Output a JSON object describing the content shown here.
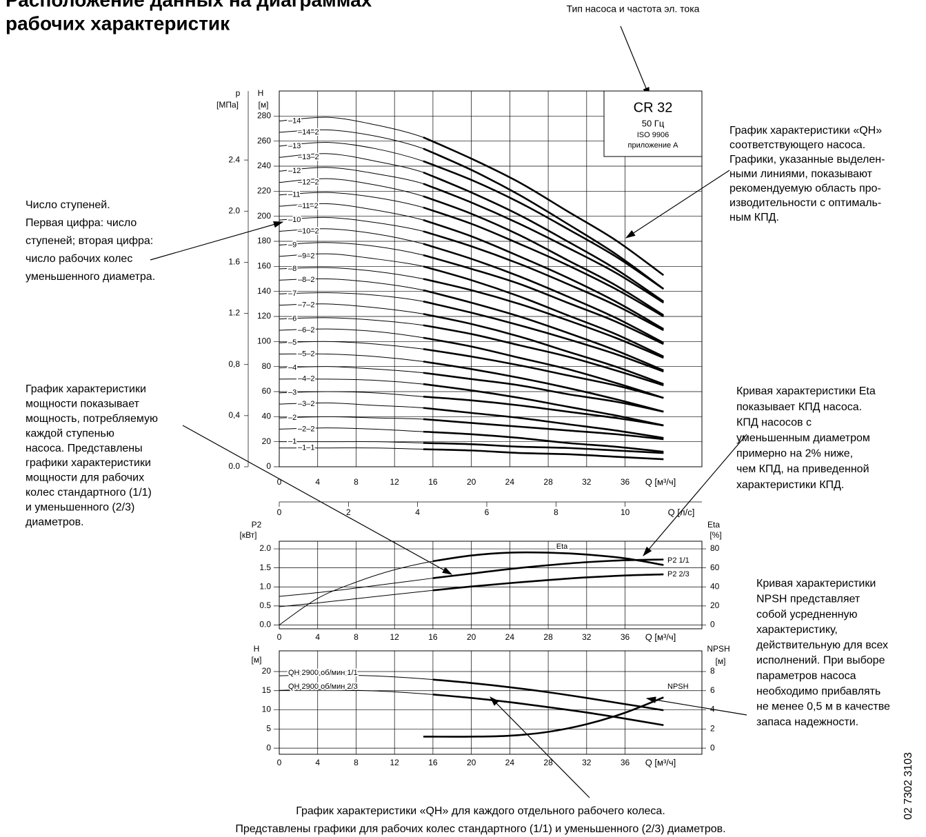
{
  "title": [
    "Расположение данных на диаграммах",
    "рабочих характеристик"
  ],
  "annotations": {
    "pump_type": "Тип насоса и частота эл. тока",
    "qh_curves": [
      "График характеристики «QH»",
      "соответствующего насоса.",
      "Графики, указанные выделен-",
      "ными линиями, показывают",
      "рекомендуемую область про-",
      "изводительности с оптималь-",
      "ным КПД."
    ],
    "stages": [
      "Число ступеней.",
      "Первая цифра: число",
      "ступеней; вторая цифра:",
      "число рабочих колес",
      "уменьшенного диаметра."
    ],
    "power": [
      "График характеристики",
      "мощности показывает",
      "мощность, потребляемую",
      "каждой ступенью",
      "насоса. Представлены",
      "графики характеристики",
      "мощности для рабочих",
      "колес стандартного (1/1)",
      "и уменьшенного (2/3)",
      "диаметров."
    ],
    "eta": [
      "Кривая характеристики Eta",
      "показывает КПД насоса.",
      "КПД насосов с",
      "уменьшенным диаметром",
      "примерно на 2% ниже,",
      "чем КПД, на приведенной",
      "характеристики КПД."
    ],
    "npsh": [
      "Кривая характеристики",
      "NPSH представляет",
      "собой усредненную",
      "характеристику,",
      "действительную для всех",
      "исполнений. При выборе",
      "параметров насоса",
      "необходимо прибавлять",
      "не менее 0,5 м в качестве",
      "запаса надежности."
    ],
    "bottom": [
      "График характеристики «QH» для каждого отдельного рабочего колеса.",
      "Представлены графики для рабочих колес стандартного (1/1) и уменьшенного (2/3) диаметров."
    ],
    "doc_number": "02 7302 3103"
  },
  "chart_data": [
    {
      "type": "line",
      "box": [
        "CR 32",
        "50 Гц",
        "ISO 9906",
        "приложение A"
      ],
      "x_label": "Q [м³/ч]",
      "y_label": "H",
      "y_unit": "[м]",
      "y2_label": "p",
      "y2_unit": "[МПа]",
      "xlim": [
        0,
        44
      ],
      "xticks": [
        0,
        4,
        8,
        12,
        16,
        20,
        24,
        28,
        32,
        36
      ],
      "ylim": [
        0,
        300
      ],
      "yticks": [
        0,
        20,
        40,
        60,
        80,
        100,
        120,
        140,
        160,
        180,
        200,
        220,
        240,
        260,
        280
      ],
      "y2lim": [
        0,
        2.94
      ],
      "y2ticks": [
        {
          "value": 0,
          "label": "0.0"
        },
        {
          "value": 0.4,
          "label": "0,4"
        },
        {
          "value": 0.8,
          "label": "0,8"
        },
        {
          "value": 1.2,
          "label": "1.2"
        },
        {
          "value": 1.6,
          "label": "1.6"
        },
        {
          "value": 2.0,
          "label": "2.0"
        },
        {
          "value": 2.4,
          "label": "2.4"
        }
      ],
      "grid": true,
      "highlight_from": 15,
      "x": [
        0,
        5,
        10,
        15,
        20,
        25,
        30,
        35,
        40
      ],
      "series": [
        {
          "name": "–14",
          "color": "#000000",
          "values": [
            276,
            279,
            273,
            263,
            246,
            227,
            204,
            181,
            153
          ]
        },
        {
          "name": "–14–2",
          "color": "#000000",
          "values": [
            267,
            269,
            264,
            254,
            237,
            217,
            194,
            170,
            142
          ]
        },
        {
          "name": "–13",
          "color": "#000000",
          "values": [
            256,
            259,
            254,
            244,
            229,
            211,
            190,
            168,
            142
          ]
        },
        {
          "name": "–13–2",
          "color": "#000000",
          "values": [
            247,
            250,
            244,
            235,
            219,
            201,
            180,
            158,
            132
          ]
        },
        {
          "name": "–12",
          "color": "#000000",
          "values": [
            236,
            239,
            234,
            226,
            211,
            194,
            175,
            155,
            131
          ]
        },
        {
          "name": "–12–2",
          "color": "#000000",
          "values": [
            227,
            230,
            225,
            216,
            202,
            185,
            165,
            145,
            121
          ]
        },
        {
          "name": "–11",
          "color": "#000000",
          "values": [
            217,
            219,
            215,
            207,
            194,
            178,
            161,
            142,
            120
          ]
        },
        {
          "name": "–11–2",
          "color": "#000000",
          "values": [
            208,
            210,
            205,
            197,
            184,
            168,
            151,
            132,
            110
          ]
        },
        {
          "name": "–10",
          "color": "#000000",
          "values": [
            197,
            199,
            195,
            188,
            176,
            162,
            146,
            129,
            109
          ]
        },
        {
          "name": "–10–2",
          "color": "#000000",
          "values": [
            188,
            190,
            186,
            178,
            166,
            152,
            136,
            119,
            99
          ]
        },
        {
          "name": "–9",
          "color": "#000000",
          "values": [
            177,
            179,
            176,
            169,
            158,
            146,
            131,
            116,
            98
          ]
        },
        {
          "name": "–9–2",
          "color": "#000000",
          "values": [
            168,
            170,
            166,
            160,
            149,
            136,
            121,
            106,
            88
          ]
        },
        {
          "name": "–8",
          "color": "#000000",
          "values": [
            158,
            159,
            156,
            150,
            141,
            130,
            117,
            103,
            87
          ]
        },
        {
          "name": "–8–2",
          "color": "#000000",
          "values": [
            149,
            150,
            147,
            141,
            131,
            120,
            107,
            93,
            77
          ]
        },
        {
          "name": "–7",
          "color": "#000000",
          "values": [
            138,
            139,
            137,
            132,
            123,
            113,
            102,
            90,
            76
          ]
        },
        {
          "name": "–7–2",
          "color": "#000000",
          "values": [
            129,
            130,
            127,
            122,
            114,
            104,
            92,
            80,
            66
          ]
        },
        {
          "name": "–6",
          "color": "#000000",
          "values": [
            118,
            119,
            117,
            113,
            106,
            97,
            88,
            77,
            65
          ]
        },
        {
          "name": "–6–2",
          "color": "#000000",
          "values": [
            109,
            110,
            108,
            103,
            96,
            87,
            78,
            67,
            55
          ]
        },
        {
          "name": "–5",
          "color": "#000000",
          "values": [
            99,
            100,
            98,
            94,
            88,
            81,
            73,
            65,
            55
          ]
        },
        {
          "name": "–5–2",
          "color": "#000000",
          "values": [
            90,
            90,
            88,
            84,
            78,
            71,
            63,
            54,
            44
          ]
        },
        {
          "name": "–4",
          "color": "#000000",
          "values": [
            79,
            80,
            78,
            75,
            70,
            65,
            58,
            52,
            44
          ]
        },
        {
          "name": "–4–2",
          "color": "#000000",
          "values": [
            70,
            70,
            69,
            66,
            61,
            55,
            48,
            41,
            33
          ]
        },
        {
          "name": "–3",
          "color": "#000000",
          "values": [
            59,
            60,
            59,
            56,
            53,
            49,
            44,
            39,
            33
          ]
        },
        {
          "name": "–3–2",
          "color": "#000000",
          "values": [
            50,
            51,
            49,
            47,
            43,
            39,
            34,
            29,
            23
          ]
        },
        {
          "name": "–2",
          "color": "#000000",
          "values": [
            39,
            40,
            39,
            38,
            35,
            32,
            29,
            26,
            22
          ]
        },
        {
          "name": "–2–2",
          "color": "#000000",
          "values": [
            30,
            31,
            30,
            28,
            26,
            23,
            19,
            16,
            12
          ]
        },
        {
          "name": "–1",
          "color": "#000000",
          "values": [
            20,
            20,
            20,
            19,
            18,
            16,
            15,
            13,
            11
          ]
        },
        {
          "name": "–1–1",
          "color": "#000000",
          "values": [
            15,
            15,
            15,
            14,
            13,
            11,
            10,
            8,
            6
          ]
        }
      ]
    },
    {
      "type": "line",
      "x_label": "Q [м³/ч]",
      "x2_label": "Q [л/с]",
      "y_label": "P2",
      "y_unit": "[кВт]",
      "y2_label": "Eta",
      "y2_unit": "[%]",
      "xlim": [
        0,
        44
      ],
      "xticks": [
        0,
        4,
        8,
        12,
        16,
        20,
        24,
        28,
        32,
        36
      ],
      "x2lim": [
        0,
        12.22
      ],
      "x2ticks": [
        0,
        2,
        4,
        6,
        8,
        10
      ],
      "ylim": [
        -0.1,
        2.2
      ],
      "yticks": [
        {
          "value": 0,
          "label": "0.0"
        },
        0.5,
        {
          "value": 1,
          "label": "1.0"
        },
        1.5,
        {
          "value": 2,
          "label": "2.0"
        }
      ],
      "y2lim": [
        -4,
        88
      ],
      "y2ticks": [
        0,
        20,
        40,
        60,
        80
      ],
      "grid": true,
      "highlight_from": 15,
      "x": [
        0,
        4,
        8,
        12,
        16,
        20,
        24,
        28,
        32,
        36,
        40
      ],
      "series": [
        {
          "name": "Eta",
          "color": "#000000",
          "axis": "y2",
          "values": [
            0,
            28,
            45,
            58,
            67,
            73,
            76,
            76,
            74,
            70,
            63
          ]
        },
        {
          "name": "P2 1/1",
          "color": "#000000",
          "values": [
            0.75,
            0.85,
            0.97,
            1.1,
            1.23,
            1.35,
            1.47,
            1.57,
            1.65,
            1.7,
            1.72
          ]
        },
        {
          "name": "P2 2/3",
          "color": "#000000",
          "values": [
            0.48,
            0.58,
            0.69,
            0.8,
            0.91,
            1.01,
            1.1,
            1.18,
            1.25,
            1.3,
            1.33
          ]
        }
      ]
    },
    {
      "type": "line",
      "x_label": "Q [м³/ч]",
      "y_label": "H",
      "y_unit": "[м]",
      "y2_label": "NPSH",
      "y2_unit": "[м]",
      "xlim": [
        0,
        44
      ],
      "xticks": [
        0,
        4,
        8,
        12,
        16,
        20,
        24,
        28,
        32,
        36
      ],
      "ylim": [
        -1.6,
        25.4
      ],
      "yticks": [
        0,
        5,
        10,
        15,
        20
      ],
      "y2lim": [
        -0.64,
        10.16
      ],
      "y2ticks": [
        0,
        2,
        4,
        6,
        8
      ],
      "grid": true,
      "highlight_from": 15,
      "x": [
        0,
        4,
        8,
        12,
        16,
        20,
        24,
        28,
        32,
        36,
        40
      ],
      "series": [
        {
          "name": "QH 2900 об/мин 1/1",
          "color": "#000000",
          "values": [
            18.9,
            19.1,
            19.0,
            18.6,
            17.9,
            17.0,
            15.9,
            14.6,
            13.1,
            11.5,
            9.9
          ]
        },
        {
          "name": "QH 2900 об/мин 2/3",
          "color": "#000000",
          "values": [
            15.1,
            15.3,
            15.1,
            14.7,
            14.0,
            13.1,
            12.0,
            10.7,
            9.3,
            7.7,
            6.0
          ]
        },
        {
          "name": "NPSH",
          "color": "#000000",
          "axis": "y2",
          "x": [
            15,
            20,
            24,
            28,
            32,
            36,
            40
          ],
          "values": [
            1.2,
            1.2,
            1.3,
            1.7,
            2.5,
            3.7,
            5.3
          ]
        }
      ]
    }
  ]
}
